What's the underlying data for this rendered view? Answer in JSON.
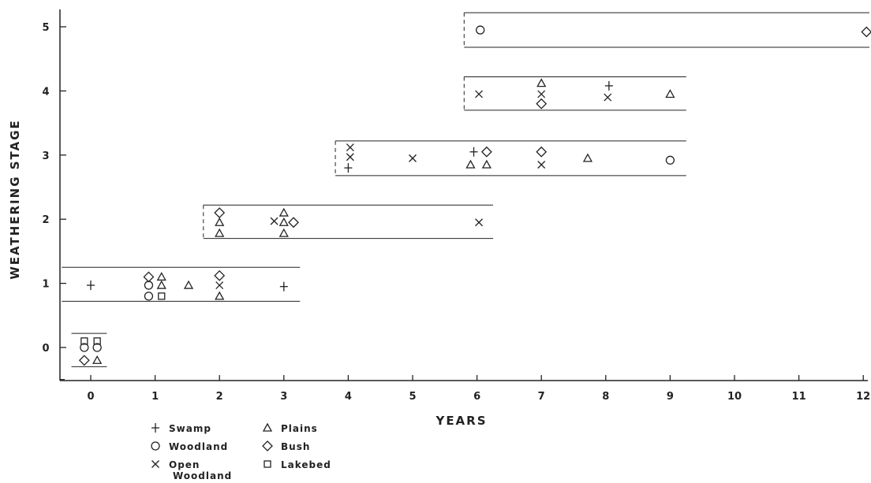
{
  "chart_data": {
    "type": "scatter",
    "xlabel": "YEARS",
    "ylabel": "WEATHERING STAGE",
    "xlim": [
      -0.5,
      12.1
    ],
    "ylim": [
      -0.5,
      5.3
    ],
    "x_ticks": [
      "0",
      "1",
      "2",
      "3",
      "4",
      "5",
      "6",
      "7",
      "8",
      "9",
      "10",
      "11",
      "12"
    ],
    "y_ticks": [
      "0",
      "1",
      "2",
      "3",
      "4",
      "5"
    ],
    "grid": false,
    "legend_position": "bottom-left, below x axis",
    "legend": [
      {
        "marker": "plus",
        "label": "Swamp"
      },
      {
        "marker": "circle",
        "label": "Woodland"
      },
      {
        "marker": "cross",
        "label": "Open",
        "label2": "Woodland"
      },
      {
        "marker": "triangle",
        "label": "Plains"
      },
      {
        "marker": "diamond",
        "label": "Bush"
      },
      {
        "marker": "square",
        "label": "Lakebed"
      }
    ],
    "stage_boxes": [
      {
        "stage": 0,
        "x_from": -0.3,
        "x_to": 0.25,
        "y_from": -0.3,
        "y_to": 0.22
      },
      {
        "stage": 1,
        "x_from": -0.45,
        "x_to": 3.25,
        "y_from": 0.72,
        "y_to": 1.25
      },
      {
        "stage": 2,
        "x_from": 1.75,
        "x_to": 6.25,
        "y_from": 1.7,
        "y_to": 2.22
      },
      {
        "stage": 3,
        "x_from": 3.8,
        "x_to": 9.25,
        "y_from": 2.68,
        "y_to": 3.22
      },
      {
        "stage": 4,
        "x_from": 5.8,
        "x_to": 9.25,
        "y_from": 3.7,
        "y_to": 4.22
      },
      {
        "stage": 5,
        "x_from": 5.8,
        "x_to": 12.1,
        "y_from": 4.68,
        "y_to": 5.22
      }
    ],
    "series": [
      {
        "marker": "plus",
        "points": [
          [
            0,
            0.97
          ],
          [
            3,
            0.95
          ],
          [
            4,
            2.8
          ],
          [
            5.95,
            3.05
          ],
          [
            8.05,
            4.08
          ]
        ]
      },
      {
        "marker": "circle",
        "points": [
          [
            0.9,
            0.97
          ],
          [
            0.9,
            0.8
          ],
          [
            -0.1,
            0
          ],
          [
            0.1,
            0
          ],
          [
            6.05,
            4.95
          ],
          [
            9,
            2.92
          ]
        ]
      },
      {
        "marker": "cross",
        "points": [
          [
            2,
            0.97
          ],
          [
            2.85,
            1.97
          ],
          [
            4.03,
            3.12
          ],
          [
            4.03,
            2.97
          ],
          [
            5,
            2.95
          ],
          [
            6.03,
            1.95
          ],
          [
            6.03,
            3.95
          ],
          [
            7,
            3.95
          ],
          [
            7,
            2.85
          ],
          [
            8.03,
            3.9
          ]
        ]
      },
      {
        "marker": "triangle",
        "points": [
          [
            1.1,
            1.1
          ],
          [
            1.1,
            0.97
          ],
          [
            1.52,
            0.97
          ],
          [
            2,
            0.8
          ],
          [
            2,
            1.95
          ],
          [
            2,
            1.78
          ],
          [
            3,
            2.1
          ],
          [
            3,
            1.95
          ],
          [
            3,
            1.78
          ],
          [
            0.1,
            -0.2
          ],
          [
            5.9,
            2.85
          ],
          [
            6.15,
            2.85
          ],
          [
            7,
            4.12
          ],
          [
            7.72,
            2.95
          ],
          [
            9,
            3.95
          ]
        ]
      },
      {
        "marker": "diamond",
        "points": [
          [
            0.9,
            1.1
          ],
          [
            2,
            1.12
          ],
          [
            2,
            2.1
          ],
          [
            3.15,
            1.95
          ],
          [
            -0.1,
            -0.2
          ],
          [
            6.15,
            3.05
          ],
          [
            7,
            3.05
          ],
          [
            7,
            3.8
          ],
          [
            12.05,
            4.92
          ]
        ]
      },
      {
        "marker": "square",
        "points": [
          [
            1.1,
            0.8
          ],
          [
            -0.1,
            0.1
          ],
          [
            0.1,
            0.1
          ]
        ]
      }
    ]
  }
}
